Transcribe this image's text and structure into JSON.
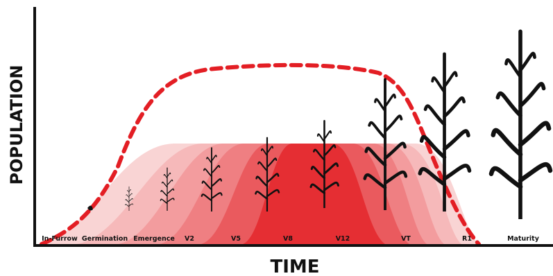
{
  "axes": {
    "y_label": "POPULATION",
    "x_label": "TIME"
  },
  "stages": [
    "In-Furrow",
    "Germination",
    "Emergence",
    "V2",
    "V5",
    "V8",
    "V12",
    "VT",
    "R1",
    "Maturity"
  ]
}
